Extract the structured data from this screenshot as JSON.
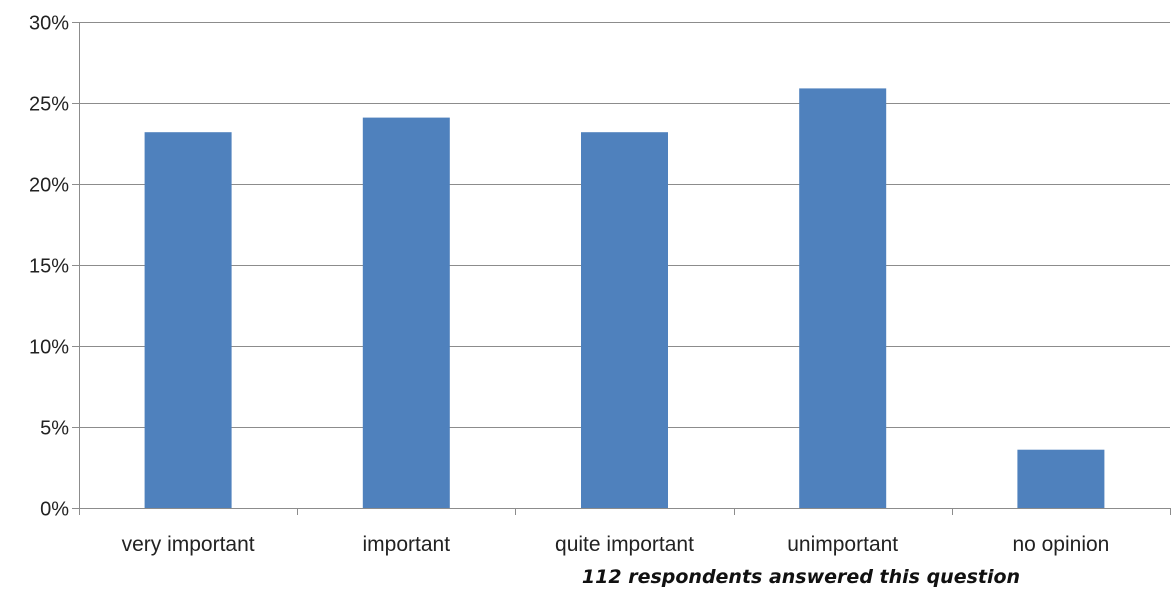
{
  "chart_data": {
    "type": "bar",
    "categories": [
      "very important",
      "important",
      "quite important",
      "unimportant",
      "no opinion"
    ],
    "values": [
      23.2,
      24.1,
      23.2,
      25.9,
      3.6
    ],
    "y_ticks": [
      "0%",
      "5%",
      "10%",
      "15%",
      "20%",
      "25%",
      "30%"
    ],
    "ylim": [
      0,
      30
    ],
    "grid": true,
    "bar_color": "#4f81bd",
    "annotation": "112 respondents answered this question"
  }
}
